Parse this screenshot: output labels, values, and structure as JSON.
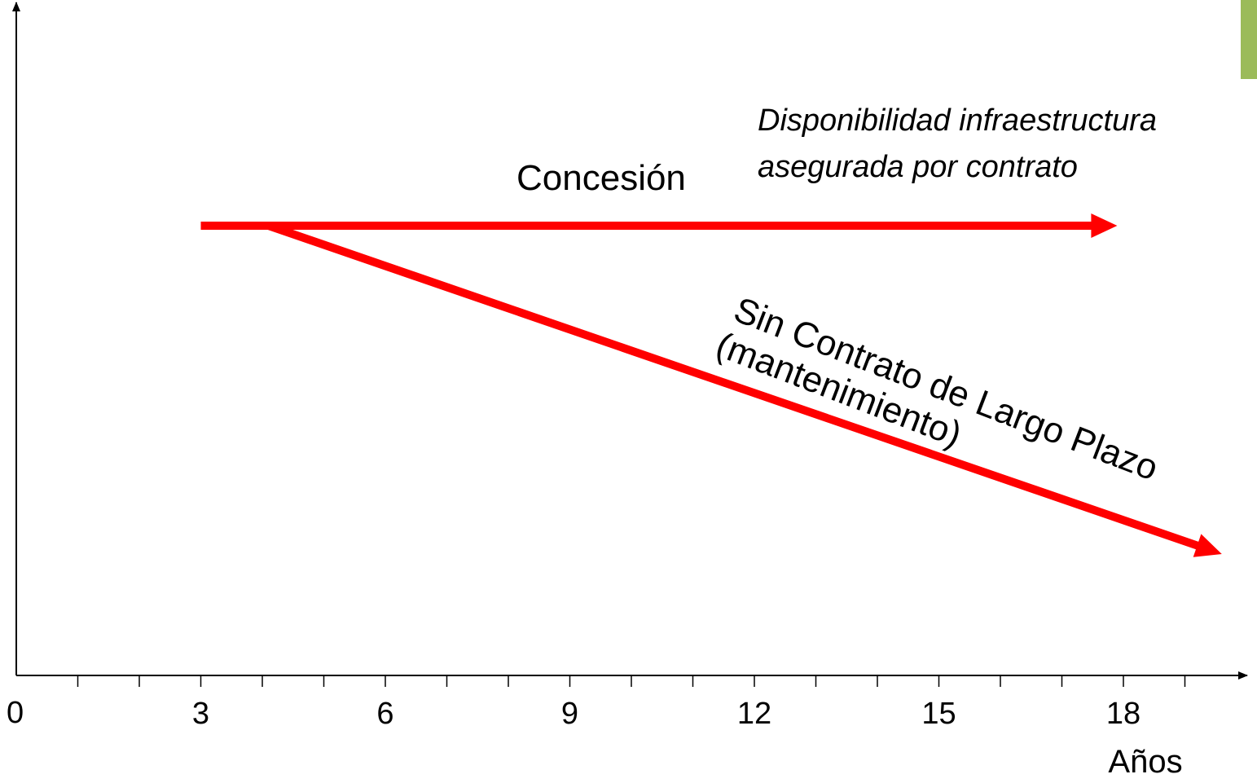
{
  "chart_data": {
    "type": "line",
    "xlabel": "Años",
    "ylabel": "",
    "xlim": [
      0,
      20
    ],
    "x_ticks": [
      "0",
      "3",
      "6",
      "9",
      "12",
      "15",
      "18"
    ],
    "x_minor_step": 1,
    "series": [
      {
        "name": "Concesión",
        "color": "#ff0000",
        "points": [
          {
            "x": 3.0,
            "y": 1.0
          },
          {
            "x": 17.9,
            "y": 1.0
          }
        ],
        "arrow": true
      },
      {
        "name": "Sin Contrato de Largo Plazo (mantenimiento)",
        "color": "#ff0000",
        "points": [
          {
            "x": 4.1,
            "y": 1.0
          },
          {
            "x": 19.6,
            "y": 0.27
          }
        ],
        "arrow": true
      }
    ],
    "annotations": {
      "concesion": "Concesión",
      "availability_line1": "Disponibilidad infraestructura",
      "availability_line2": "asegurada por contrato",
      "sin_contrato_line1": "Sin Contrato de Largo Plazo",
      "sin_contrato_line2": "(mantenimiento)"
    },
    "grid": false
  },
  "decor": {
    "corner_accent_color": "#9bbb59"
  }
}
